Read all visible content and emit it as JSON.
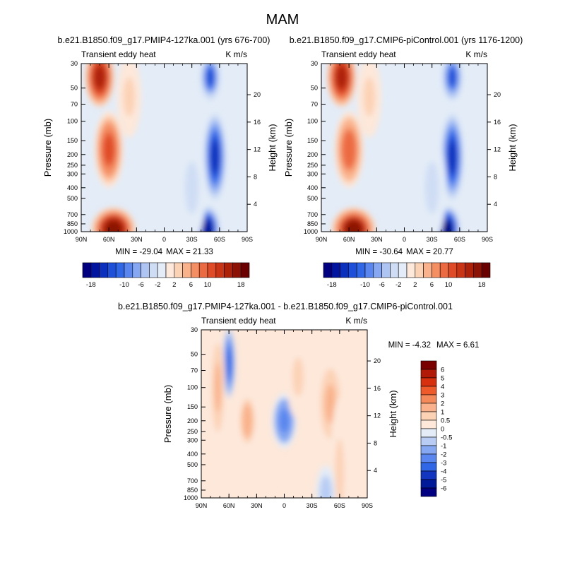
{
  "title": "MAM",
  "chart_data": [
    {
      "type": "heatmap",
      "title": "b.e21.B1850.f09_g17.PMIP4-127ka.001 (yrs 676-700)",
      "left_label": "Transient eddy heat",
      "right_label": "K m/s",
      "xlabel": "",
      "ylabel": "Pressure (mb)",
      "ylabel_right": "Height (km)",
      "x_ticks": [
        "90N",
        "60N",
        "30N",
        "0",
        "30S",
        "60S",
        "90S"
      ],
      "y_ticks": [
        "30",
        "50",
        "70",
        "100",
        "150",
        "200",
        "250",
        "300",
        "400",
        "500",
        "700",
        "850",
        "1000"
      ],
      "height_ticks": [
        "20",
        "16",
        "12",
        "8",
        "4"
      ],
      "min_label": "MIN = -29.04",
      "max_label": "MAX =  21.33",
      "min": -29.04,
      "max": 21.33,
      "features": [
        {
          "lat": 70,
          "p": 40,
          "value": 18,
          "rx": 12,
          "ry": 90
        },
        {
          "lat": 60,
          "p": 180,
          "value": 12,
          "rx": 12,
          "ry": 130
        },
        {
          "lat": 55,
          "p": 950,
          "value": 20,
          "rx": 18,
          "ry": 55
        },
        {
          "lat": 38,
          "p": 60,
          "value": 3,
          "rx": 10,
          "ry": 140
        },
        {
          "lat": -55,
          "p": 210,
          "value": -16,
          "rx": 9,
          "ry": 150
        },
        {
          "lat": -50,
          "p": 40,
          "value": -14,
          "rx": 8,
          "ry": 60
        },
        {
          "lat": -47,
          "p": 950,
          "value": -20,
          "rx": 10,
          "ry": 60
        },
        {
          "lat": -30,
          "p": 400,
          "value": -3,
          "rx": 12,
          "ry": 200
        }
      ]
    },
    {
      "type": "heatmap",
      "title": "b.e21.B1850.f09_g17.CMIP6-piControl.001 (yrs 1176-1200)",
      "left_label": "Transient eddy heat",
      "right_label": "K m/s",
      "xlabel": "",
      "ylabel": "Pressure (mb)",
      "ylabel_right": "Height (km)",
      "x_ticks": [
        "90N",
        "60N",
        "30N",
        "0",
        "30S",
        "60S",
        "90S"
      ],
      "y_ticks": [
        "30",
        "50",
        "70",
        "100",
        "150",
        "200",
        "250",
        "300",
        "400",
        "500",
        "700",
        "850",
        "1000"
      ],
      "height_ticks": [
        "20",
        "16",
        "12",
        "8",
        "4"
      ],
      "min_label": "MIN = -30.64",
      "max_label": "MAX =  20.77",
      "min": -30.64,
      "max": 20.77,
      "features": [
        {
          "lat": 68,
          "p": 40,
          "value": 18,
          "rx": 12,
          "ry": 90
        },
        {
          "lat": 60,
          "p": 180,
          "value": 11,
          "rx": 12,
          "ry": 130
        },
        {
          "lat": 55,
          "p": 950,
          "value": 19,
          "rx": 18,
          "ry": 55
        },
        {
          "lat": 38,
          "p": 60,
          "value": 3,
          "rx": 10,
          "ry": 140
        },
        {
          "lat": -52,
          "p": 210,
          "value": -17,
          "rx": 9,
          "ry": 150
        },
        {
          "lat": -52,
          "p": 40,
          "value": -15,
          "rx": 8,
          "ry": 60
        },
        {
          "lat": -47,
          "p": 950,
          "value": -21,
          "rx": 10,
          "ry": 60
        },
        {
          "lat": -30,
          "p": 400,
          "value": -3,
          "rx": 12,
          "ry": 200
        }
      ]
    },
    {
      "type": "heatmap",
      "title": "b.e21.B1850.f09_g17.PMIP4-127ka.001 - b.e21.B1850.f09_g17.CMIP6-piControl.001",
      "left_label": "Transient eddy heat",
      "right_label": "K m/s",
      "xlabel": "",
      "ylabel": "Pressure (mb)",
      "ylabel_right": "Height (km)",
      "x_ticks": [
        "90N",
        "60N",
        "30N",
        "0",
        "30S",
        "60S",
        "90S"
      ],
      "y_ticks": [
        "30",
        "50",
        "70",
        "100",
        "150",
        "200",
        "250",
        "300",
        "400",
        "500",
        "700",
        "850",
        "1000"
      ],
      "height_ticks": [
        "20",
        "16",
        "12",
        "8",
        "4"
      ],
      "min_label": "MIN =  -4.32",
      "max_label": "MAX =   6.61",
      "min": -4.32,
      "max": 6.61,
      "features": [
        {
          "lat": 60,
          "p": 60,
          "value": -4,
          "rx": 5,
          "ry": 110
        },
        {
          "lat": 72,
          "p": 100,
          "value": 1.5,
          "rx": 6,
          "ry": 200
        },
        {
          "lat": 40,
          "p": 200,
          "value": 2,
          "rx": 7,
          "ry": 80
        },
        {
          "lat": 0,
          "p": 200,
          "value": -3,
          "rx": 10,
          "ry": 80
        },
        {
          "lat": -15,
          "p": 80,
          "value": 0.7,
          "rx": 10,
          "ry": 150
        },
        {
          "lat": -50,
          "p": 140,
          "value": 1.5,
          "rx": 10,
          "ry": 150
        },
        {
          "lat": -60,
          "p": 600,
          "value": 0.7,
          "rx": 8,
          "ry": 300
        },
        {
          "lat": -45,
          "p": 900,
          "value": -1.2,
          "rx": 8,
          "ry": 80
        },
        {
          "lat": 20,
          "p": 800,
          "value": 0.6,
          "rx": 12,
          "ry": 150
        }
      ]
    }
  ],
  "colorbars": {
    "top": {
      "levels": [
        -20,
        -18,
        -16,
        -14,
        -12,
        -10,
        -8,
        -6,
        -4,
        -2,
        0,
        2,
        4,
        6,
        8,
        10,
        12,
        14,
        16,
        18,
        20
      ],
      "labels": [
        "-18",
        "-10",
        "-6",
        "-2",
        "2",
        "6",
        "10",
        "18"
      ],
      "colors": [
        "#000080",
        "#00149f",
        "#0b30bd",
        "#1e4fd8",
        "#2f67e6",
        "#5a87ef",
        "#86a8f2",
        "#aec4f3",
        "#cfddf4",
        "#e3ecf7",
        "#fde8da",
        "#fcd2b5",
        "#f9b28b",
        "#f48e63",
        "#ec6a42",
        "#df4b26",
        "#c93414",
        "#ad2109",
        "#8b1204",
        "#6b0000"
      ]
    },
    "diff": {
      "labels": [
        "6",
        "5",
        "4",
        "3",
        "2",
        "1",
        "0.5",
        "0",
        "-0.5",
        "-1",
        "-2",
        "-3",
        "-4",
        "-5",
        "-6"
      ],
      "colors": [
        "#7a0000",
        "#b01a07",
        "#d6300f",
        "#ee5a2a",
        "#f48a5a",
        "#f9b28b",
        "#fcd2b5",
        "#fde8da",
        "#e3ecf7",
        "#b8ccf4",
        "#86a8f2",
        "#5a87ef",
        "#2f67e6",
        "#1336c0",
        "#001a9a",
        "#000080"
      ]
    }
  }
}
